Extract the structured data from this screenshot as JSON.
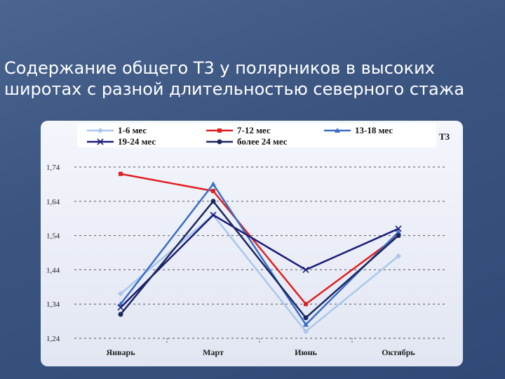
{
  "slide": {
    "title": "Содержание общего Т3 у полярников в высоких\nширотах с разной длительностью северного стажа"
  },
  "chart_data": {
    "type": "line",
    "unit_label": "Т3",
    "categories": [
      "Январь",
      "Март",
      "Июнь",
      "Октябрь"
    ],
    "ylim": [
      1.24,
      1.74
    ],
    "yticks": [
      "1,24",
      "1,34",
      "1,44",
      "1,54",
      "1,64",
      "1,74"
    ],
    "ytick_values": [
      1.24,
      1.34,
      1.44,
      1.54,
      1.64,
      1.74
    ],
    "grid": true,
    "legend_position": "top",
    "series": [
      {
        "name": "1-6 мес",
        "values": [
          1.37,
          1.6,
          1.26,
          1.48
        ],
        "color": "#a9c8ec",
        "marker": "diamond"
      },
      {
        "name": "7-12 мес",
        "values": [
          1.72,
          1.67,
          1.34,
          1.54
        ],
        "color": "#e02020",
        "marker": "square"
      },
      {
        "name": "13-18 мес",
        "values": [
          1.34,
          1.69,
          1.28,
          1.55
        ],
        "color": "#3a6ec8",
        "marker": "triangle"
      },
      {
        "name": "19-24 мес",
        "values": [
          1.33,
          1.6,
          1.44,
          1.56
        ],
        "color": "#1c1c7a",
        "marker": "x"
      },
      {
        "name": "более 24 мес",
        "values": [
          1.31,
          1.64,
          1.3,
          1.54
        ],
        "color": "#1a2860",
        "marker": "circle"
      }
    ]
  }
}
